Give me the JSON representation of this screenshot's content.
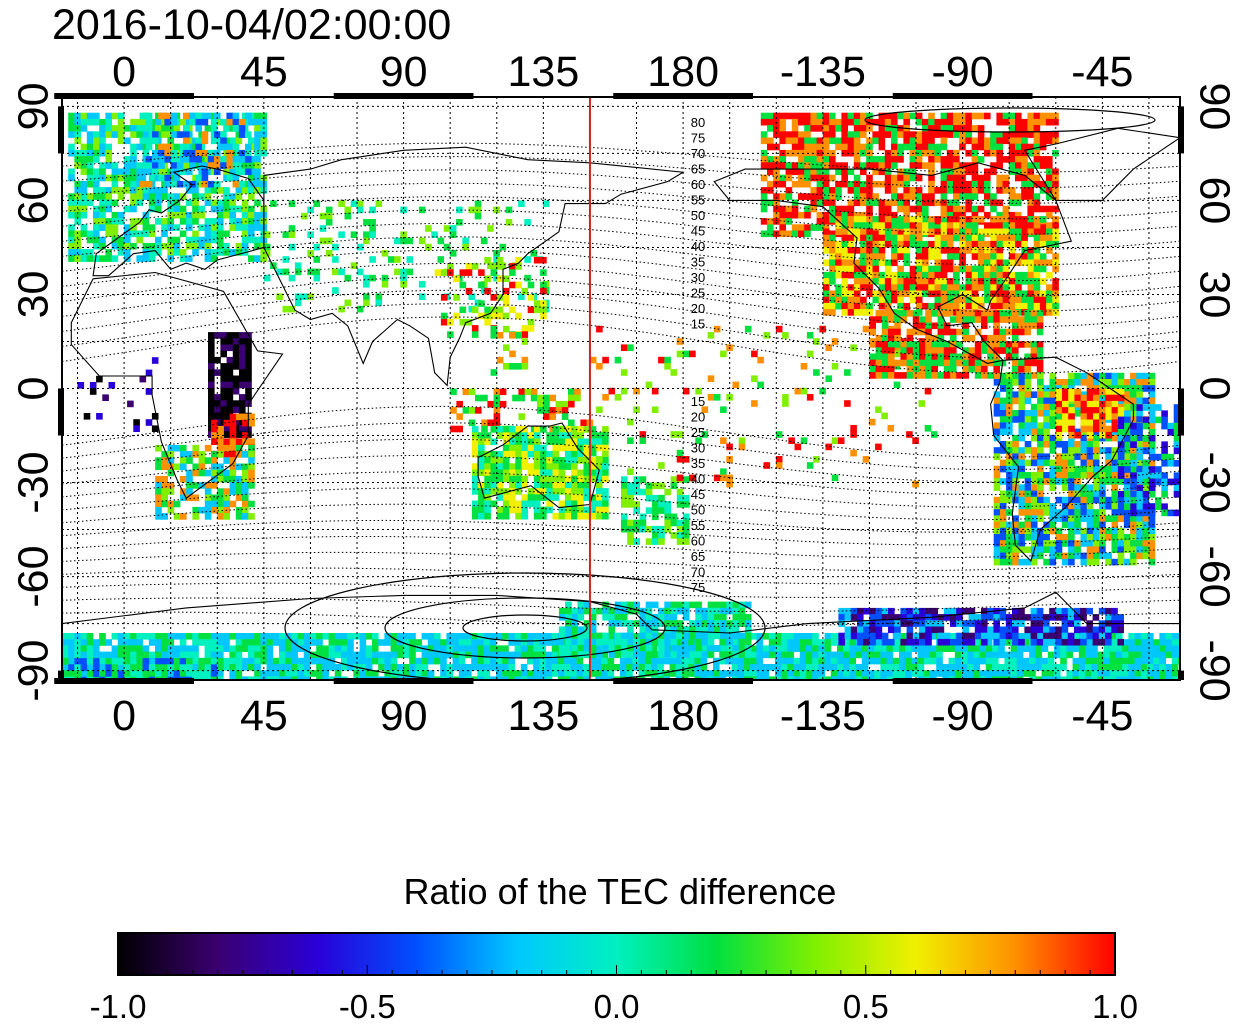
{
  "title": "2016-10-04/02:00:00",
  "map": {
    "lon_ticks": [
      "0",
      "45",
      "90",
      "135",
      "180",
      "-135",
      "-90",
      "-45"
    ],
    "lat_ticks": [
      "90",
      "60",
      "30",
      "0",
      "-30",
      "-60",
      "-90"
    ],
    "lat_tick_values": [
      90,
      60,
      30,
      0,
      -30,
      -60,
      -90
    ],
    "lon_tick_values": [
      0,
      45,
      90,
      135,
      180,
      225,
      270,
      315
    ],
    "lon_range": [
      -20,
      340
    ],
    "lat_range": [
      -93,
      93
    ],
    "marker_longitude": 150,
    "marker_color": "#d62020",
    "contour_labels_north": [
      "80",
      "75",
      "70",
      "65",
      "60",
      "55",
      "50",
      "45",
      "40",
      "35",
      "30",
      "25",
      "20",
      "15"
    ],
    "contour_labels_south": [
      "15",
      "20",
      "25",
      "30",
      "35",
      "40",
      "45",
      "50",
      "55",
      "60",
      "65",
      "70",
      "75"
    ],
    "grid": true
  },
  "colorbar": {
    "title": "Ratio of the TEC difference",
    "range": [
      -1.0,
      1.0
    ],
    "ticks": [
      "-1.0",
      "-0.5",
      "0.0",
      "0.5",
      "1.0"
    ],
    "colors": [
      "#000000",
      "#3a0070",
      "#2a00d8",
      "#0050ff",
      "#00c8ff",
      "#00f0c0",
      "#00e040",
      "#80f000",
      "#f0f000",
      "#ff9000",
      "#ff0000"
    ]
  }
}
